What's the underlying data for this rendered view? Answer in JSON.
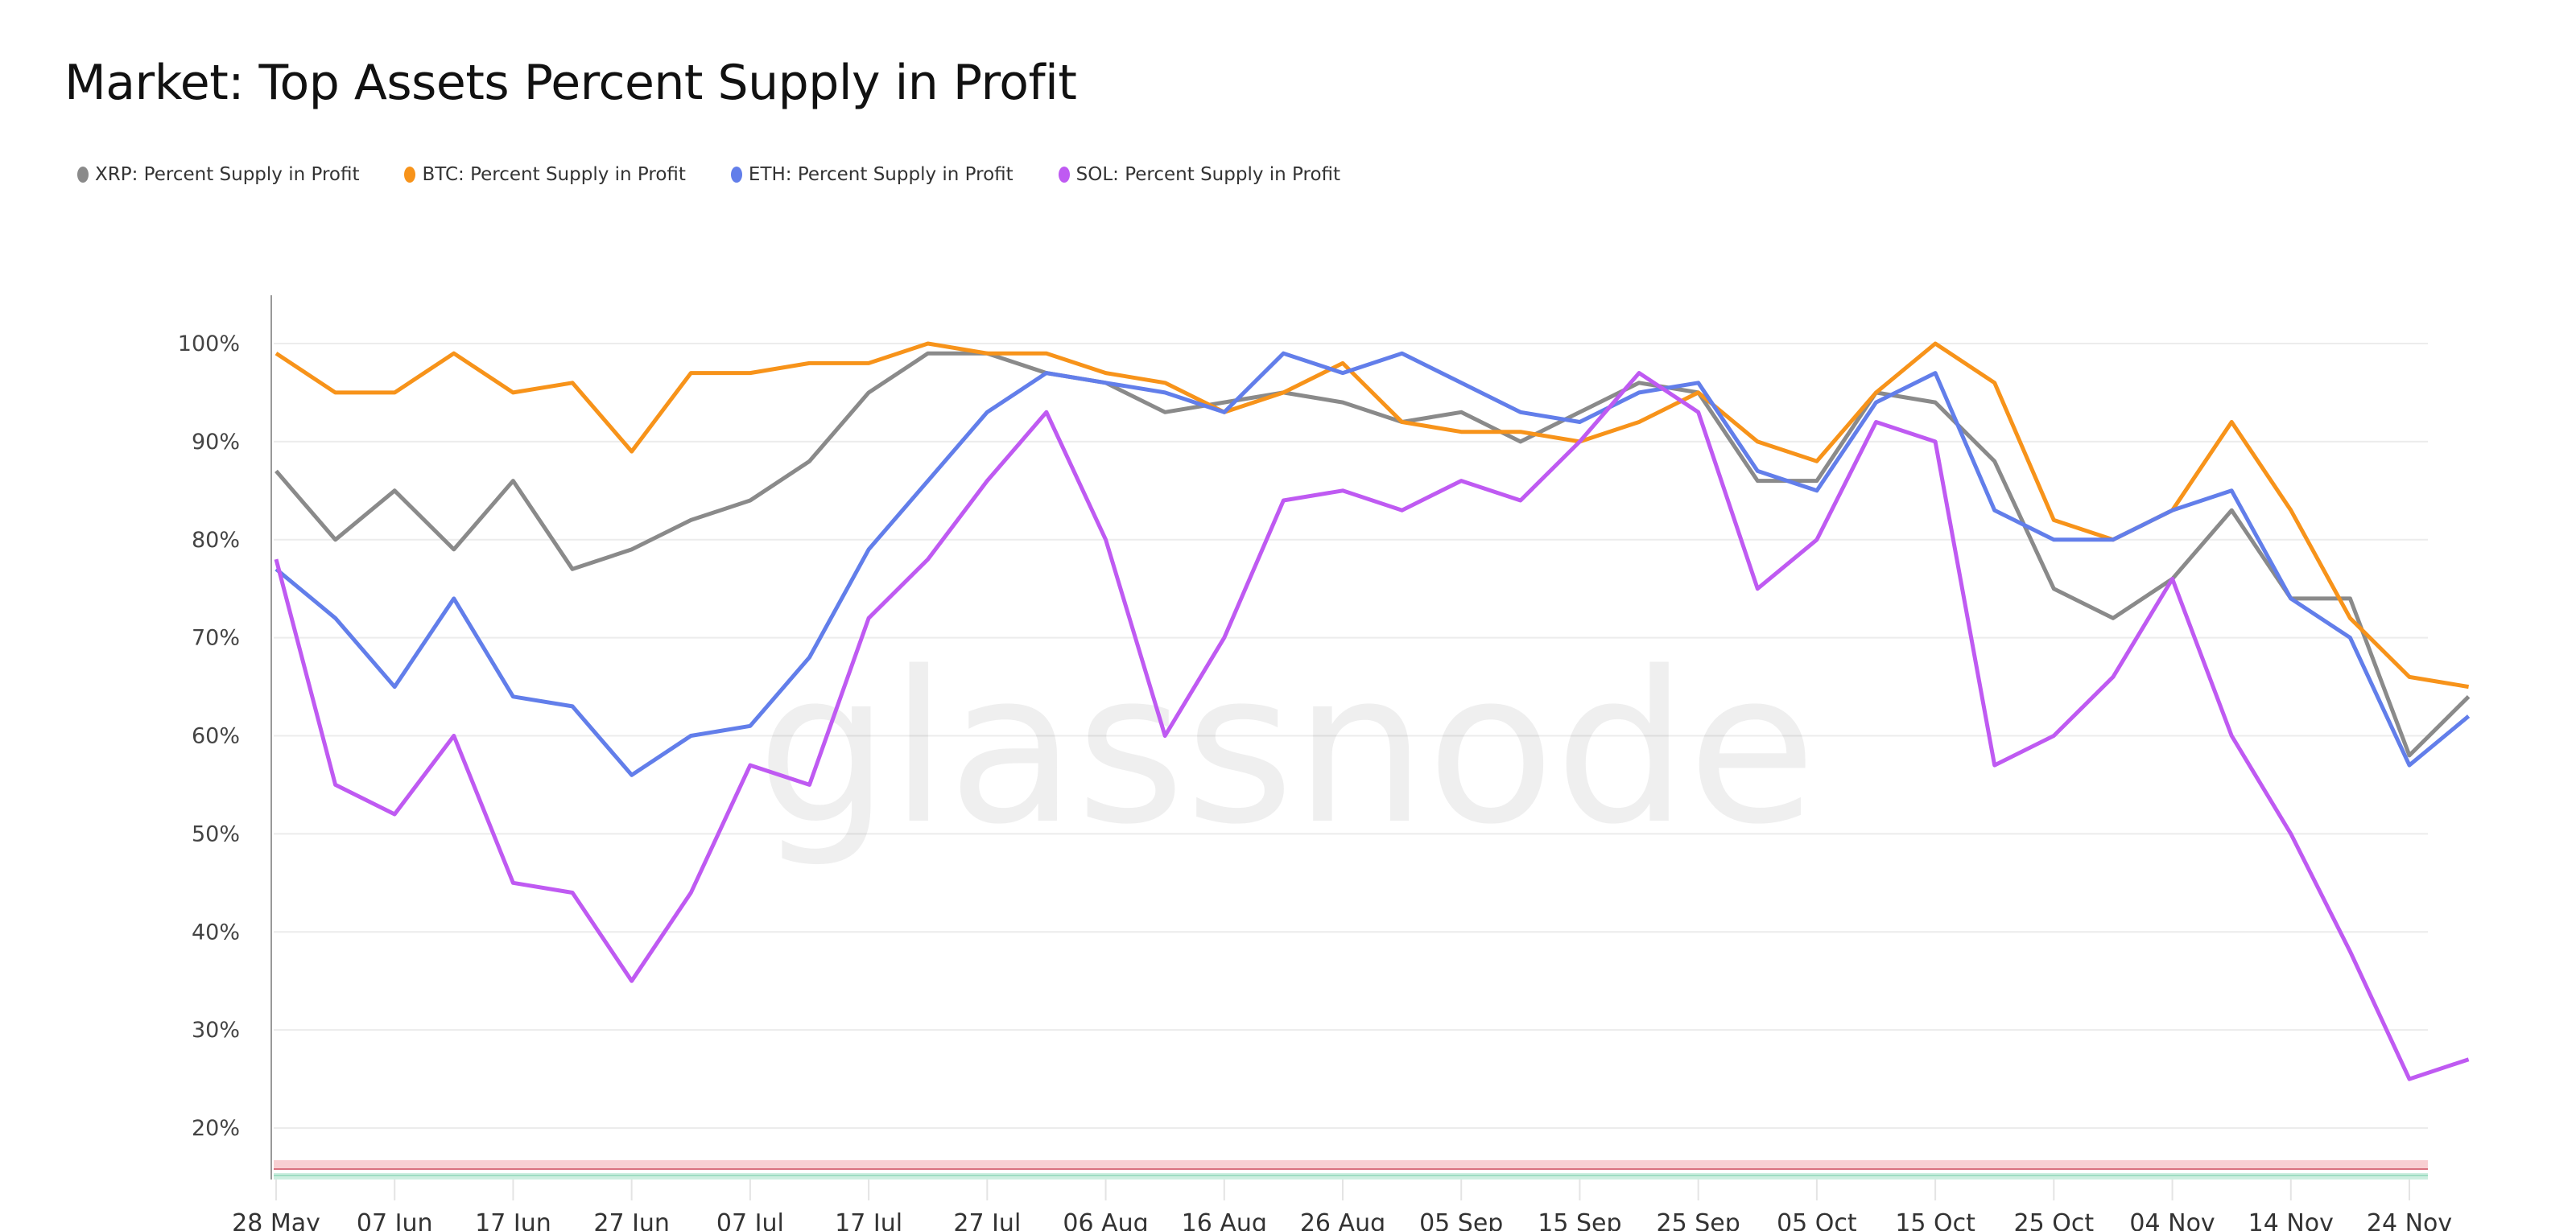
{
  "chart_data": {
    "type": "line",
    "title": "Market: Top Assets Percent Supply in Profit",
    "watermark": "glassnode",
    "xlabel": "",
    "ylabel": "",
    "start_date": "2024-05-28",
    "x_tick_labels": [
      "28 May",
      "07 Jun",
      "17 Jun",
      "27 Jun",
      "07 Jul",
      "17 Jul",
      "27 Jul",
      "06 Aug",
      "16 Aug",
      "26 Aug",
      "05 Sep",
      "15 Sep",
      "25 Sep",
      "05 Oct",
      "15 Oct",
      "25 Oct",
      "04 Nov",
      "14 Nov",
      "24 Nov"
    ],
    "y_tick_labels": [
      "100%",
      "90%",
      "80%",
      "70%",
      "60%",
      "50%",
      "40%",
      "30%",
      "20%"
    ],
    "y_ticks": [
      100,
      90,
      80,
      70,
      60,
      50,
      40,
      30,
      20
    ],
    "ylim": [
      15,
      105
    ],
    "grid": true,
    "legend_position": "top-left",
    "x": [
      "28 May",
      "02 Jun",
      "07 Jun",
      "12 Jun",
      "17 Jun",
      "22 Jun",
      "27 Jun",
      "02 Jul",
      "07 Jul",
      "12 Jul",
      "17 Jul",
      "22 Jul",
      "27 Jul",
      "01 Aug",
      "06 Aug",
      "11 Aug",
      "16 Aug",
      "21 Aug",
      "26 Aug",
      "31 Aug",
      "05 Sep",
      "10 Sep",
      "15 Sep",
      "20 Sep",
      "25 Sep",
      "30 Sep",
      "05 Oct",
      "10 Oct",
      "15 Oct",
      "20 Oct",
      "25 Oct",
      "30 Oct",
      "04 Nov",
      "09 Nov",
      "14 Nov",
      "19 Nov",
      "24 Nov",
      "26 Nov"
    ],
    "series": [
      {
        "name": "XRP: Percent Supply in Profit",
        "color": "#8a8a8a",
        "values": [
          87,
          80,
          85,
          79,
          86,
          77,
          79,
          82,
          84,
          88,
          95,
          99,
          99,
          97,
          96,
          93,
          94,
          95,
          94,
          92,
          93,
          90,
          93,
          96,
          95,
          86,
          86,
          95,
          94,
          88,
          75,
          72,
          76,
          83,
          74,
          74,
          58,
          64
        ]
      },
      {
        "name": "BTC: Percent Supply in Profit",
        "color": "#f7931a",
        "values": [
          99,
          95,
          95,
          99,
          95,
          96,
          89,
          97,
          97,
          98,
          98,
          100,
          99,
          99,
          97,
          96,
          93,
          95,
          98,
          92,
          91,
          91,
          90,
          92,
          95,
          90,
          88,
          95,
          100,
          96,
          82,
          80,
          83,
          92,
          83,
          72,
          66,
          65
        ]
      },
      {
        "name": "ETH: Percent Supply in Profit",
        "color": "#627eea",
        "values": [
          77,
          72,
          65,
          74,
          64,
          63,
          56,
          60,
          61,
          68,
          79,
          86,
          93,
          97,
          96,
          95,
          93,
          99,
          97,
          99,
          96,
          93,
          92,
          95,
          96,
          87,
          85,
          94,
          97,
          83,
          80,
          80,
          83,
          85,
          74,
          70,
          57,
          62
        ]
      },
      {
        "name": "SOL: Percent Supply in Profit",
        "color": "#bf5af2",
        "values": [
          78,
          55,
          52,
          60,
          45,
          44,
          35,
          44,
          57,
          55,
          72,
          78,
          86,
          93,
          80,
          60,
          70,
          84,
          85,
          83,
          86,
          84,
          90,
          97,
          93,
          75,
          80,
          92,
          90,
          57,
          60,
          66,
          76,
          60,
          50,
          38,
          25,
          27
        ]
      }
    ]
  }
}
